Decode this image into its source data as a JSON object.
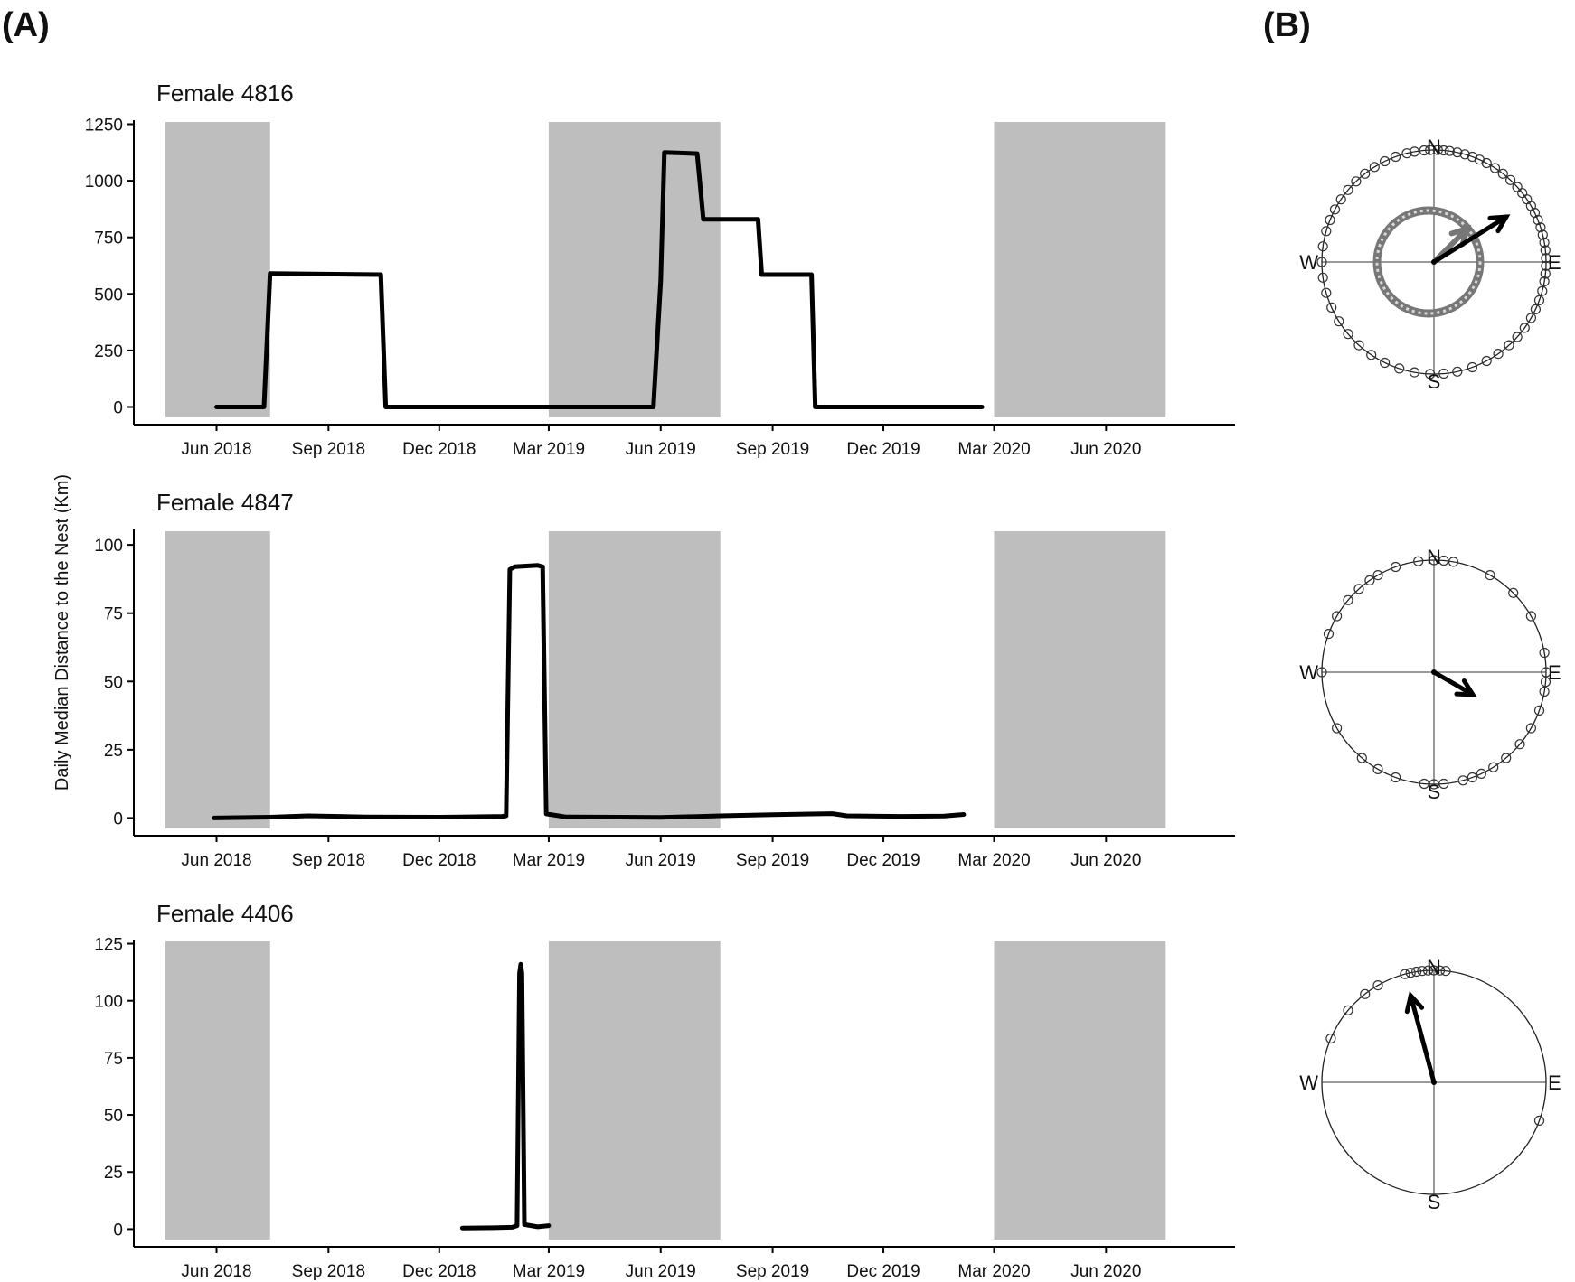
{
  "panel_labels": [
    "(A)",
    "(B)"
  ],
  "shared_ylabel": "Daily Median Distance to the Nest (Km)",
  "x_ticks": [
    "Jun 2018",
    "Sep 2018",
    "Dec 2018",
    "Mar 2019",
    "Jun 2019",
    "Sep 2019",
    "Dec 2019",
    "Mar 2020",
    "Jun 2020"
  ],
  "shading_color": "#bebebe",
  "line_color": "#000000",
  "chart_data": [
    {
      "type": "line",
      "title": "Female 4816",
      "xlabel": "",
      "ylabel": "Daily Median Distance to the Nest (Km)",
      "x_range": [
        "2018-03-25",
        "2020-09-15"
      ],
      "ylim": [
        -30,
        1260
      ],
      "y_ticks": [
        0,
        250,
        500,
        750,
        1000,
        1250
      ],
      "shaded_periods": [
        [
          "2018-04-20",
          "2018-07-15"
        ],
        [
          "2019-03-01",
          "2019-07-20"
        ],
        [
          "2020-03-01",
          "2020-07-20"
        ]
      ],
      "series": [
        {
          "points": [
            [
              "2018-06-01",
              0
            ],
            [
              "2018-07-10",
              0
            ],
            [
              "2018-07-15",
              590
            ],
            [
              "2018-10-14",
              585
            ],
            [
              "2018-10-18",
              0
            ],
            [
              "2019-05-26",
              0
            ],
            [
              "2019-06-01",
              560
            ],
            [
              "2019-06-04",
              1125
            ],
            [
              "2019-07-01",
              1120
            ],
            [
              "2019-07-06",
              830
            ],
            [
              "2019-08-20",
              830
            ],
            [
              "2019-08-23",
              585
            ],
            [
              "2019-10-03",
              585
            ],
            [
              "2019-10-06",
              0
            ],
            [
              "2020-02-20",
              0
            ]
          ]
        }
      ]
    },
    {
      "type": "line",
      "title": "Female 4847",
      "xlabel": "",
      "ylabel": "Daily Median Distance to the Nest (Km)",
      "x_range": [
        "2018-03-25",
        "2020-09-15"
      ],
      "ylim": [
        -2.5,
        105
      ],
      "y_ticks": [
        0,
        25,
        50,
        75,
        100
      ],
      "shaded_periods": [
        [
          "2018-04-20",
          "2018-07-15"
        ],
        [
          "2019-03-01",
          "2019-07-20"
        ],
        [
          "2020-03-01",
          "2020-07-20"
        ]
      ],
      "series": [
        {
          "points": [
            [
              "2018-05-30",
              0
            ],
            [
              "2018-07-15",
              0.3
            ],
            [
              "2018-08-15",
              0.8
            ],
            [
              "2018-10-01",
              0.4
            ],
            [
              "2018-12-01",
              0.3
            ],
            [
              "2019-01-22",
              0.6
            ],
            [
              "2019-01-25",
              0.8
            ],
            [
              "2019-01-28",
              91
            ],
            [
              "2019-02-01",
              92
            ],
            [
              "2019-02-20",
              92.5
            ],
            [
              "2019-02-24",
              92
            ],
            [
              "2019-02-27",
              1.5
            ],
            [
              "2019-03-15",
              0.4
            ],
            [
              "2019-06-01",
              0.2
            ],
            [
              "2019-07-20",
              0.8
            ],
            [
              "2019-09-01",
              1.2
            ],
            [
              "2019-10-20",
              1.6
            ],
            [
              "2019-11-01",
              0.8
            ],
            [
              "2019-12-15",
              0.6
            ],
            [
              "2020-01-20",
              0.7
            ],
            [
              "2020-02-05",
              1.3
            ]
          ]
        }
      ]
    },
    {
      "type": "line",
      "title": "Female 4406",
      "xlabel": "",
      "ylabel": "Daily Median Distance to the Nest (Km)",
      "x_range": [
        "2018-03-25",
        "2020-09-15"
      ],
      "ylim": [
        -3,
        126
      ],
      "y_ticks": [
        0,
        25,
        50,
        75,
        100,
        125
      ],
      "shaded_periods": [
        [
          "2018-04-20",
          "2018-07-15"
        ],
        [
          "2019-03-01",
          "2019-07-20"
        ],
        [
          "2020-03-01",
          "2020-07-20"
        ]
      ],
      "series": [
        {
          "points": [
            [
              "2018-12-20",
              0.5
            ],
            [
              "2019-01-15",
              0.6
            ],
            [
              "2019-01-30",
              0.8
            ],
            [
              "2019-02-03",
              1.5
            ],
            [
              "2019-02-05",
              112
            ],
            [
              "2019-02-06",
              116
            ],
            [
              "2019-02-07",
              112
            ],
            [
              "2019-02-09",
              2
            ],
            [
              "2019-02-20",
              1
            ],
            [
              "2019-03-01",
              1.5
            ]
          ]
        }
      ]
    }
  ],
  "compasses": [
    {
      "directions": {
        "n": "N",
        "e": "E",
        "s": "S",
        "w": "W"
      },
      "outer_bearings_deg": [
        355,
        358,
        2,
        5,
        8,
        12,
        16,
        20,
        24,
        28,
        33,
        38,
        43,
        48,
        52,
        56,
        60,
        64,
        68,
        72,
        76,
        80,
        84,
        88,
        92,
        96,
        100,
        105,
        110,
        115,
        120,
        126,
        132,
        138,
        145,
        152,
        160,
        168,
        175,
        182,
        190,
        198,
        206,
        214,
        222,
        230,
        238,
        246,
        254,
        262,
        270,
        278,
        286,
        292,
        298,
        304,
        310,
        316,
        322,
        328,
        334,
        340,
        346,
        350
      ],
      "inner_ring": true,
      "arrow_bearing_deg": 58,
      "arrow_length_frac": 0.76,
      "inner_arrow_bearing_deg": 45,
      "inner_arrow_length_frac": 0.42
    },
    {
      "directions": {
        "n": "N",
        "e": "E",
        "s": "S",
        "w": "W"
      },
      "outer_bearings_deg": [
        0,
        5,
        10,
        30,
        45,
        60,
        80,
        90,
        95,
        100,
        110,
        120,
        130,
        140,
        148,
        155,
        160,
        165,
        175,
        180,
        185,
        200,
        210,
        220,
        240,
        270,
        290,
        300,
        310,
        318,
        325,
        330,
        340,
        352
      ],
      "inner_ring": false,
      "arrow_bearing_deg": 120,
      "arrow_length_frac": 0.4,
      "inner_arrow_bearing_deg": null,
      "inner_arrow_length_frac": null
    },
    {
      "directions": {
        "n": "N",
        "e": "E",
        "s": "S",
        "w": "W"
      },
      "outer_bearings_deg": [
        345,
        348,
        351,
        354,
        357,
        0,
        3,
        6,
        330,
        322,
        310,
        293,
        110
      ],
      "inner_ring": false,
      "arrow_bearing_deg": 345,
      "arrow_length_frac": 0.8,
      "inner_arrow_bearing_deg": null,
      "inner_arrow_length_frac": null
    }
  ]
}
